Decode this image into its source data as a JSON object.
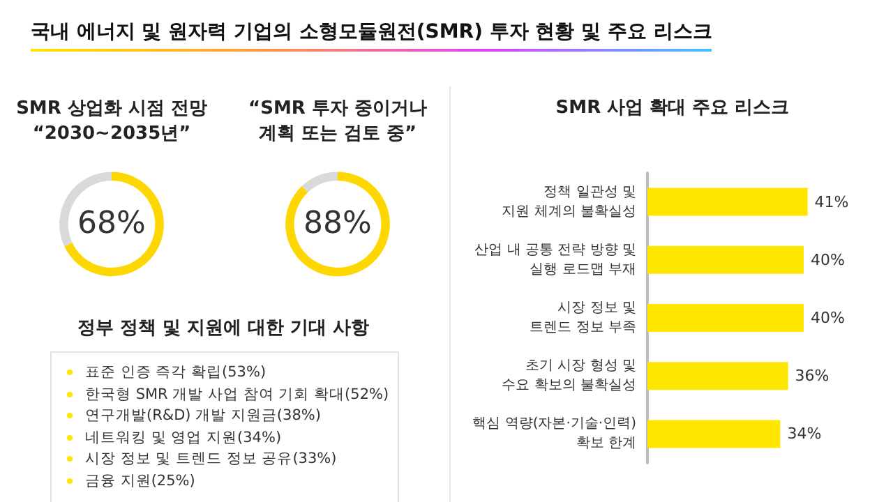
{
  "chart_data": [
    {
      "type": "donut",
      "title": "국내 에너지 및 원자력 기업의 소형모듈원전(SMR) 투자 현황 및 주요 리스크",
      "subtitle": "SMR 상업화 시점 전망\n“2030~2035년”",
      "categories": [
        null,
        null
      ],
      "values": [
        68,
        32
      ],
      "colors": [
        "#ffd700",
        "#d9d9d9"
      ],
      "value_labels": [
        "68%",
        null
      ]
    },
    {
      "type": "donut",
      "subtitle": "“SMR 투자 중이거나\n계획 또는 검토 중”",
      "categories": [
        null,
        null
      ],
      "values": [
        88,
        12
      ],
      "colors": [
        "#ffd700",
        "#d9d9d9"
      ],
      "value_labels": [
        "88%",
        null
      ]
    },
    {
      "type": "other",
      "title": "정부 정책 및 지원에 대한 기대 사항",
      "annotations": [
        "표준 인증 즉각 확립(53%)",
        "한국형 SMR 개발 사업 참여 기회 확대(52%)",
        "연구개발(R&D) 개발 지원금(38%)",
        "네트워킹 및 영업 지원(34%)",
        "시장 정보 및 트렌드 정보 공유(33%)",
        "금융 지원(25%)"
      ]
    },
    {
      "type": "bar",
      "orientation": "horizontal",
      "title": "SMR 사업 확대 주요 리스크",
      "categories": [
        "정책 일관성 및\n지원 체계의 불확실성",
        "산업 내 공통 전략 방향 및\n실행 로드맵 부재",
        "시장 정보 및\n트렌드 정보 부족",
        "초기 시장 형성 및\n수요 확보의 불확실성",
        "핵심 역량(자본·기술·인력)\n확보 한계"
      ],
      "values": [
        41,
        40,
        40,
        36,
        34
      ],
      "value_labels": [
        "41%",
        "40%",
        "40%",
        "36%",
        "34%"
      ],
      "color": "#ffe600"
    }
  ]
}
